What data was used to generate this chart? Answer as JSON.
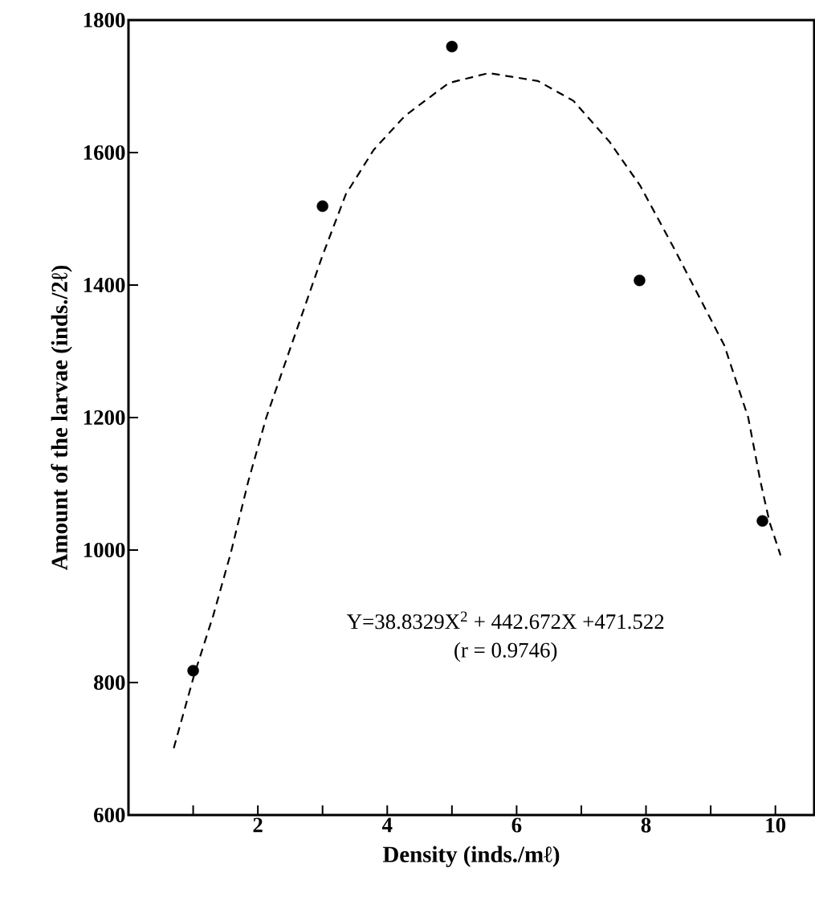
{
  "chart_data": {
    "type": "scatter",
    "xlabel": "Density (inds./mℓ)",
    "ylabel": "Amount of the larvae (inds./2ℓ)",
    "xlim": [
      0,
      10.6
    ],
    "ylim": [
      600,
      1800
    ],
    "xticks": [
      {
        "value": 1,
        "label": null
      },
      2,
      {
        "value": 3,
        "label": null
      },
      4,
      {
        "value": 5,
        "label": null
      },
      6,
      {
        "value": 7,
        "label": null
      },
      8,
      {
        "value": 9,
        "label": null
      },
      10
    ],
    "yticks": [
      600,
      800,
      1000,
      1200,
      1400,
      1600,
      1800
    ],
    "annotations": [
      "Y=38.8329X$^{2}$ + 442.672X +471.522",
      "(r = 0.9746)"
    ],
    "series": [
      {
        "marker": "circle",
        "color": "#000000",
        "x": [
          1,
          3,
          5,
          7.9,
          9.8
        ],
        "values": [
          818,
          1519,
          1760,
          1407,
          1044
        ]
      },
      {
        "type": "line",
        "marker": "none",
        "line_style": "dashed",
        "color": "#000000",
        "x": [
          0.7,
          1.02,
          1.31,
          1.58,
          1.85,
          2.13,
          2.99,
          3.36,
          3.79,
          4.27,
          4.95,
          5.57,
          6.33,
          6.88,
          7.43,
          7.91,
          8.43,
          9.21,
          9.58,
          9.77,
          9.91,
          10.08
        ],
        "values": [
          701,
          813,
          901,
          995,
          1103,
          1200,
          1442,
          1537,
          1604,
          1655,
          1705,
          1720,
          1708,
          1678,
          1617,
          1550,
          1456,
          1309,
          1200,
          1103,
          1042,
          992
        ]
      }
    ]
  }
}
